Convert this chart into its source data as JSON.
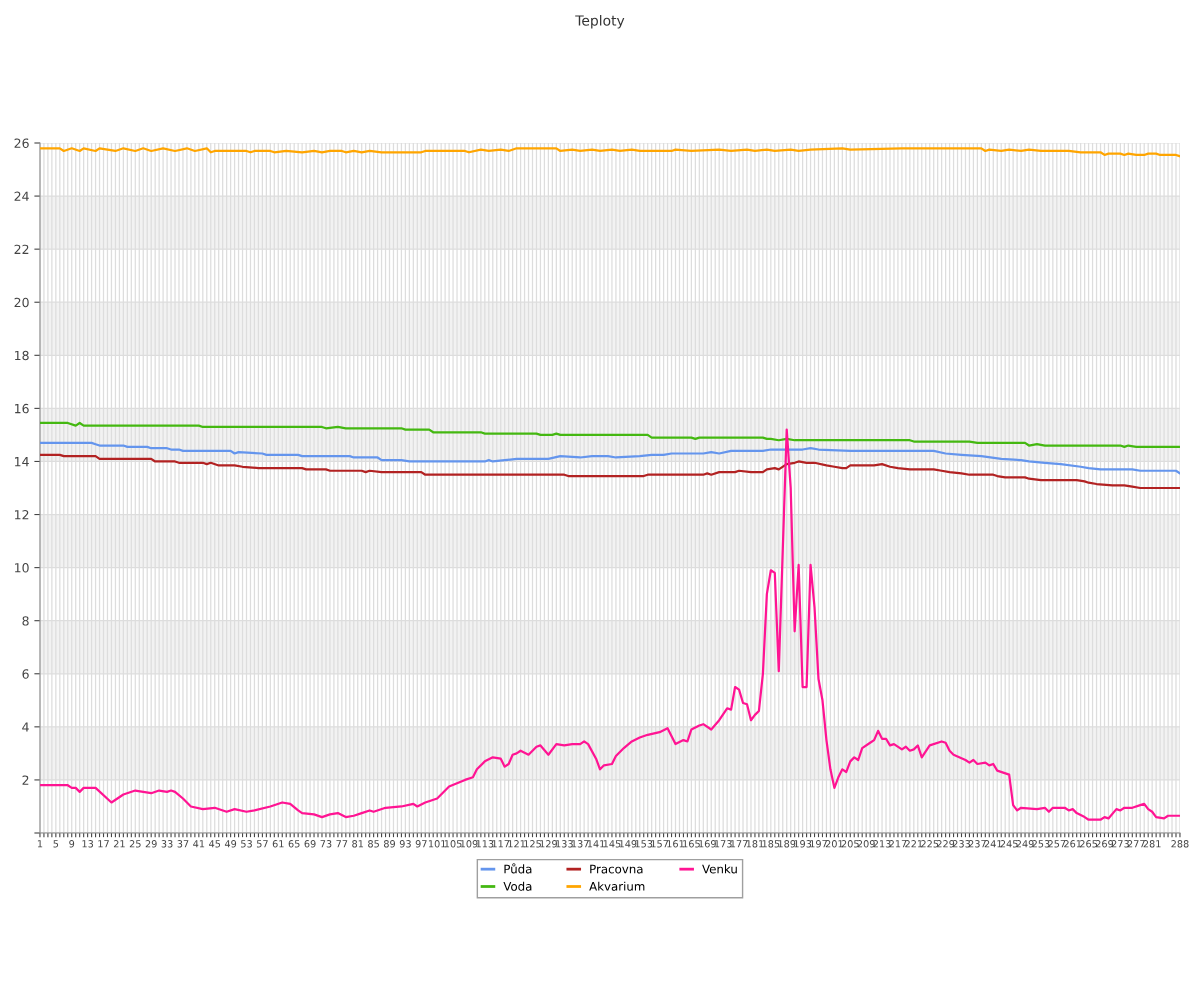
{
  "chart_data": {
    "type": "line",
    "title": "Teploty",
    "xlim": [
      1,
      288
    ],
    "xticks": [
      1,
      {
        "value": 2,
        "label": null
      },
      {
        "value": 3,
        "label": null
      },
      {
        "value": 4,
        "label": null
      },
      5,
      {
        "value": 6,
        "label": null
      },
      {
        "value": 7,
        "label": null
      },
      {
        "value": 8,
        "label": null
      },
      9,
      {
        "value": 10,
        "label": null
      },
      {
        "value": 11,
        "label": null
      },
      {
        "value": 12,
        "label": null
      },
      13,
      {
        "value": 14,
        "label": null
      },
      {
        "value": 15,
        "label": null
      },
      {
        "value": 16,
        "label": null
      },
      17,
      {
        "value": 18,
        "label": null
      },
      {
        "value": 19,
        "label": null
      },
      {
        "value": 20,
        "label": null
      },
      21,
      {
        "value": 22,
        "label": null
      },
      {
        "value": 23,
        "label": null
      },
      {
        "value": 24,
        "label": null
      },
      25,
      {
        "value": 26,
        "label": null
      },
      {
        "value": 27,
        "label": null
      },
      {
        "value": 28,
        "label": null
      },
      29,
      {
        "value": 30,
        "label": null
      },
      {
        "value": 31,
        "label": null
      },
      {
        "value": 32,
        "label": null
      },
      33,
      {
        "value": 34,
        "label": null
      },
      {
        "value": 35,
        "label": null
      },
      {
        "value": 36,
        "label": null
      },
      37,
      {
        "value": 38,
        "label": null
      },
      {
        "value": 39,
        "label": null
      },
      {
        "value": 40,
        "label": null
      },
      41,
      {
        "value": 42,
        "label": null
      },
      {
        "value": 43,
        "label": null
      },
      {
        "value": 44,
        "label": null
      },
      45,
      {
        "value": 46,
        "label": null
      },
      {
        "value": 47,
        "label": null
      },
      {
        "value": 48,
        "label": null
      },
      49,
      {
        "value": 50,
        "label": null
      },
      {
        "value": 51,
        "label": null
      },
      {
        "value": 52,
        "label": null
      },
      53,
      {
        "value": 54,
        "label": null
      },
      {
        "value": 55,
        "label": null
      },
      {
        "value": 56,
        "label": null
      },
      57,
      {
        "value": 58,
        "label": null
      },
      {
        "value": 59,
        "label": null
      },
      {
        "value": 60,
        "label": null
      },
      61,
      {
        "value": 62,
        "label": null
      },
      {
        "value": 63,
        "label": null
      },
      {
        "value": 64,
        "label": null
      },
      65,
      {
        "value": 66,
        "label": null
      },
      {
        "value": 67,
        "label": null
      },
      {
        "value": 68,
        "label": null
      },
      69,
      {
        "value": 70,
        "label": null
      },
      {
        "value": 71,
        "label": null
      },
      {
        "value": 72,
        "label": null
      },
      73,
      {
        "value": 74,
        "label": null
      },
      {
        "value": 75,
        "label": null
      },
      {
        "value": 76,
        "label": null
      },
      77,
      {
        "value": 78,
        "label": null
      },
      {
        "value": 79,
        "label": null
      },
      {
        "value": 80,
        "label": null
      },
      81,
      {
        "value": 82,
        "label": null
      },
      {
        "value": 83,
        "label": null
      },
      {
        "value": 84,
        "label": null
      },
      85,
      {
        "value": 86,
        "label": null
      },
      {
        "value": 87,
        "label": null
      },
      {
        "value": 88,
        "label": null
      },
      89,
      {
        "value": 90,
        "label": null
      },
      {
        "value": 91,
        "label": null
      },
      {
        "value": 92,
        "label": null
      },
      93,
      {
        "value": 94,
        "label": null
      },
      {
        "value": 95,
        "label": null
      },
      {
        "value": 96,
        "label": null
      },
      97,
      {
        "value": 98,
        "label": null
      },
      {
        "value": 99,
        "label": null
      },
      {
        "value": 100,
        "label": null
      },
      101,
      {
        "value": 102,
        "label": null
      },
      {
        "value": 103,
        "label": null
      },
      {
        "value": 104,
        "label": null
      },
      105,
      {
        "value": 106,
        "label": null
      },
      {
        "value": 107,
        "label": null
      },
      {
        "value": 108,
        "label": null
      },
      109,
      {
        "value": 110,
        "label": null
      },
      {
        "value": 111,
        "label": null
      },
      {
        "value": 112,
        "label": null
      },
      113,
      {
        "value": 114,
        "label": null
      },
      {
        "value": 115,
        "label": null
      },
      {
        "value": 116,
        "label": null
      },
      117,
      {
        "value": 118,
        "label": null
      },
      {
        "value": 119,
        "label": null
      },
      {
        "value": 120,
        "label": null
      },
      121,
      {
        "value": 122,
        "label": null
      },
      {
        "value": 123,
        "label": null
      },
      {
        "value": 124,
        "label": null
      },
      125,
      {
        "value": 126,
        "label": null
      },
      {
        "value": 127,
        "label": null
      },
      {
        "value": 128,
        "label": null
      },
      129,
      {
        "value": 130,
        "label": null
      },
      {
        "value": 131,
        "label": null
      },
      {
        "value": 132,
        "label": null
      },
      133,
      {
        "value": 134,
        "label": null
      },
      {
        "value": 135,
        "label": null
      },
      {
        "value": 136,
        "label": null
      },
      137,
      {
        "value": 138,
        "label": null
      },
      {
        "value": 139,
        "label": null
      },
      {
        "value": 140,
        "label": null
      },
      141,
      {
        "value": 142,
        "label": null
      },
      {
        "value": 143,
        "label": null
      },
      {
        "value": 144,
        "label": null
      },
      145,
      {
        "value": 146,
        "label": null
      },
      {
        "value": 147,
        "label": null
      },
      {
        "value": 148,
        "label": null
      },
      149,
      {
        "value": 150,
        "label": null
      },
      {
        "value": 151,
        "label": null
      },
      {
        "value": 152,
        "label": null
      },
      153,
      {
        "value": 154,
        "label": null
      },
      {
        "value": 155,
        "label": null
      },
      {
        "value": 156,
        "label": null
      },
      157,
      {
        "value": 158,
        "label": null
      },
      {
        "value": 159,
        "label": null
      },
      {
        "value": 160,
        "label": null
      },
      161,
      {
        "value": 162,
        "label": null
      },
      {
        "value": 163,
        "label": null
      },
      {
        "value": 164,
        "label": null
      },
      165,
      {
        "value": 166,
        "label": null
      },
      {
        "value": 167,
        "label": null
      },
      {
        "value": 168,
        "label": null
      },
      169,
      {
        "value": 170,
        "label": null
      },
      {
        "value": 171,
        "label": null
      },
      {
        "value": 172,
        "label": null
      },
      173,
      {
        "value": 174,
        "label": null
      },
      {
        "value": 175,
        "label": null
      },
      {
        "value": 176,
        "label": null
      },
      177,
      {
        "value": 178,
        "label": null
      },
      {
        "value": 179,
        "label": null
      },
      {
        "value": 180,
        "label": null
      },
      181,
      {
        "value": 182,
        "label": null
      },
      {
        "value": 183,
        "label": null
      },
      {
        "value": 184,
        "label": null
      },
      185,
      {
        "value": 186,
        "label": null
      },
      {
        "value": 187,
        "label": null
      },
      {
        "value": 188,
        "label": null
      },
      189,
      {
        "value": 190,
        "label": null
      },
      {
        "value": 191,
        "label": null
      },
      {
        "value": 192,
        "label": null
      },
      193,
      {
        "value": 194,
        "label": null
      },
      {
        "value": 195,
        "label": null
      },
      {
        "value": 196,
        "label": null
      },
      197,
      {
        "value": 198,
        "label": null
      },
      {
        "value": 199,
        "label": null
      },
      {
        "value": 200,
        "label": null
      },
      201,
      {
        "value": 202,
        "label": null
      },
      {
        "value": 203,
        "label": null
      },
      {
        "value": 204,
        "label": null
      },
      205,
      {
        "value": 206,
        "label": null
      },
      {
        "value": 207,
        "label": null
      },
      {
        "value": 208,
        "label": null
      },
      209,
      {
        "value": 210,
        "label": null
      },
      {
        "value": 211,
        "label": null
      },
      {
        "value": 212,
        "label": null
      },
      213,
      {
        "value": 214,
        "label": null
      },
      {
        "value": 215,
        "label": null
      },
      {
        "value": 216,
        "label": null
      },
      217,
      {
        "value": 218,
        "label": null
      },
      {
        "value": 219,
        "label": null
      },
      {
        "value": 220,
        "label": null
      },
      221,
      {
        "value": 222,
        "label": null
      },
      {
        "value": 223,
        "label": null
      },
      {
        "value": 224,
        "label": null
      },
      225,
      {
        "value": 226,
        "label": null
      },
      {
        "value": 227,
        "label": null
      },
      {
        "value": 228,
        "label": null
      },
      229,
      {
        "value": 230,
        "label": null
      },
      {
        "value": 231,
        "label": null
      },
      {
        "value": 232,
        "label": null
      },
      233,
      {
        "value": 234,
        "label": null
      },
      {
        "value": 235,
        "label": null
      },
      {
        "value": 236,
        "label": null
      },
      237,
      {
        "value": 238,
        "label": null
      },
      {
        "value": 239,
        "label": null
      },
      {
        "value": 240,
        "label": null
      },
      241,
      {
        "value": 242,
        "label": null
      },
      {
        "value": 243,
        "label": null
      },
      {
        "value": 244,
        "label": null
      },
      245,
      {
        "value": 246,
        "label": null
      },
      {
        "value": 247,
        "label": null
      },
      {
        "value": 248,
        "label": null
      },
      249,
      {
        "value": 250,
        "label": null
      },
      {
        "value": 251,
        "label": null
      },
      {
        "value": 252,
        "label": null
      },
      253,
      {
        "value": 254,
        "label": null
      },
      {
        "value": 255,
        "label": null
      },
      {
        "value": 256,
        "label": null
      },
      257,
      {
        "value": 258,
        "label": null
      },
      {
        "value": 259,
        "label": null
      },
      {
        "value": 260,
        "label": null
      },
      261,
      {
        "value": 262,
        "label": null
      },
      {
        "value": 263,
        "label": null
      },
      {
        "value": 264,
        "label": null
      },
      265,
      {
        "value": 266,
        "label": null
      },
      {
        "value": 267,
        "label": null
      },
      {
        "value": 268,
        "label": null
      },
      269,
      {
        "value": 270,
        "label": null
      },
      {
        "value": 271,
        "label": null
      },
      {
        "value": 272,
        "label": null
      },
      273,
      {
        "value": 274,
        "label": null
      },
      {
        "value": 275,
        "label": null
      },
      {
        "value": 276,
        "label": null
      },
      277,
      {
        "value": 278,
        "label": null
      },
      {
        "value": 279,
        "label": null
      },
      {
        "value": 280,
        "label": null
      },
      281,
      {
        "value": 282,
        "label": null
      },
      {
        "value": 283,
        "label": null
      },
      {
        "value": 284,
        "label": null
      },
      {
        "value": 285,
        "label": null
      },
      {
        "value": 286,
        "label": null
      },
      {
        "value": 287,
        "label": null
      },
      288
    ],
    "ylim": [
      0,
      26
    ],
    "yticks": [
      {
        "value": 0,
        "label": null
      },
      2,
      4,
      6,
      8,
      10,
      12,
      14,
      16,
      18,
      20,
      22,
      24,
      26
    ],
    "grid": true,
    "legend": "bottom",
    "marker": "none",
    "line_style": "solid",
    "bands": [
      {
        "axis": "y",
        "from": 2,
        "to": 4,
        "color": "#f2f2f2"
      },
      {
        "axis": "y",
        "from": 6,
        "to": 8,
        "color": "#f2f2f2"
      },
      {
        "axis": "y",
        "from": 10,
        "to": 12,
        "color": "#f2f2f2"
      },
      {
        "axis": "y",
        "from": 14,
        "to": 16,
        "color": "#f2f2f2"
      },
      {
        "axis": "y",
        "from": 18,
        "to": 20,
        "color": "#f2f2f2"
      },
      {
        "axis": "y",
        "from": 22,
        "to": 24,
        "color": "#f2f2f2"
      }
    ],
    "series": [
      {
        "name": "Půda",
        "color": "#6495ed",
        "x": [
          1,
          14,
          15,
          16,
          22,
          23,
          28,
          29,
          33,
          34,
          36,
          37,
          49,
          50,
          51,
          57,
          58,
          66,
          67,
          79,
          80,
          86,
          87,
          92,
          94,
          113,
          114,
          115,
          118,
          121,
          129,
          132,
          137,
          140,
          144,
          146,
          152,
          155,
          158,
          160,
          168,
          170,
          172,
          175,
          183,
          185,
          193,
          195,
          197,
          205,
          217,
          226,
          229,
          233,
          238,
          243,
          248,
          250,
          254,
          258,
          263,
          265,
          268,
          276,
          278,
          287,
          288
        ],
        "values": [
          14.7,
          14.7,
          14.65,
          14.6,
          14.6,
          14.55,
          14.55,
          14.5,
          14.5,
          14.45,
          14.45,
          14.4,
          14.4,
          14.3,
          14.35,
          14.3,
          14.25,
          14.25,
          14.2,
          14.2,
          14.15,
          14.15,
          14.05,
          14.05,
          14.0,
          14.0,
          14.05,
          14.0,
          14.05,
          14.1,
          14.1,
          14.2,
          14.15,
          14.2,
          14.2,
          14.15,
          14.2,
          14.25,
          14.25,
          14.3,
          14.3,
          14.35,
          14.3,
          14.4,
          14.4,
          14.45,
          14.45,
          14.5,
          14.45,
          14.4,
          14.4,
          14.4,
          14.3,
          14.25,
          14.2,
          14.1,
          14.05,
          14.0,
          13.95,
          13.9,
          13.8,
          13.75,
          13.7,
          13.7,
          13.65,
          13.65,
          13.55
        ]
      },
      {
        "name": "Voda",
        "color": "#44b811",
        "x": [
          1,
          8,
          10,
          11,
          12,
          41,
          42,
          72,
          73,
          76,
          78,
          92,
          93,
          99,
          100,
          112,
          113,
          126,
          127,
          130,
          131,
          132,
          154,
          155,
          165,
          166,
          167,
          183,
          184,
          185,
          187,
          189,
          191,
          220,
          221,
          235,
          237,
          249,
          250,
          252,
          254,
          273,
          274,
          275,
          277,
          288
        ],
        "values": [
          15.45,
          15.45,
          15.35,
          15.45,
          15.35,
          15.35,
          15.3,
          15.3,
          15.25,
          15.3,
          15.25,
          15.25,
          15.2,
          15.2,
          15.1,
          15.1,
          15.05,
          15.05,
          15.0,
          15.0,
          15.05,
          15.0,
          15.0,
          14.9,
          14.9,
          14.85,
          14.9,
          14.9,
          14.85,
          14.85,
          14.8,
          14.85,
          14.8,
          14.8,
          14.75,
          14.75,
          14.7,
          14.7,
          14.6,
          14.65,
          14.6,
          14.6,
          14.55,
          14.6,
          14.55,
          14.55
        ]
      },
      {
        "name": "Pracovna",
        "color": "#b22222",
        "x": [
          1,
          6,
          7,
          15,
          16,
          29,
          30,
          35,
          36,
          42,
          43,
          44,
          46,
          50,
          52,
          56,
          67,
          68,
          73,
          74,
          82,
          83,
          84,
          87,
          97,
          98,
          133,
          134,
          153,
          154,
          168,
          169,
          170,
          172,
          176,
          177,
          180,
          183,
          184,
          186,
          187,
          189,
          191,
          192,
          194,
          196,
          199,
          201,
          203,
          204,
          205,
          211,
          213,
          215,
          217,
          220,
          226,
          228,
          230,
          233,
          235,
          241,
          242,
          244,
          249,
          250,
          253,
          262,
          264,
          265,
          267,
          271,
          274,
          276,
          278,
          288
        ],
        "values": [
          14.25,
          14.25,
          14.2,
          14.2,
          14.1,
          14.1,
          14.0,
          14.0,
          13.95,
          13.95,
          13.9,
          13.95,
          13.85,
          13.85,
          13.8,
          13.75,
          13.75,
          13.7,
          13.7,
          13.65,
          13.65,
          13.6,
          13.65,
          13.6,
          13.6,
          13.5,
          13.5,
          13.45,
          13.45,
          13.5,
          13.5,
          13.55,
          13.5,
          13.6,
          13.6,
          13.65,
          13.6,
          13.6,
          13.7,
          13.75,
          13.7,
          13.9,
          13.95,
          14.0,
          13.95,
          13.95,
          13.85,
          13.8,
          13.75,
          13.75,
          13.85,
          13.85,
          13.9,
          13.8,
          13.75,
          13.7,
          13.7,
          13.65,
          13.6,
          13.55,
          13.5,
          13.5,
          13.45,
          13.4,
          13.4,
          13.35,
          13.3,
          13.3,
          13.25,
          13.2,
          13.15,
          13.1,
          13.1,
          13.05,
          13.0,
          13.0
        ]
      },
      {
        "name": "Akvarium",
        "color": "#ffa500",
        "x": [
          1,
          6,
          7,
          9,
          11,
          12,
          15,
          16,
          20,
          22,
          25,
          27,
          29,
          32,
          35,
          38,
          40,
          43,
          44,
          45,
          53,
          54,
          55,
          59,
          60,
          63,
          67,
          70,
          72,
          74,
          77,
          78,
          80,
          82,
          84,
          87,
          97,
          98,
          108,
          109,
          112,
          114,
          117,
          119,
          121,
          131,
          132,
          135,
          137,
          140,
          142,
          145,
          147,
          150,
          152,
          160,
          161,
          165,
          172,
          175,
          179,
          181,
          184,
          186,
          190,
          192,
          195,
          203,
          205,
          218,
          225,
          238,
          239,
          240,
          243,
          245,
          248,
          250,
          253,
          260,
          263,
          268,
          269,
          270,
          273,
          274,
          275,
          277,
          279,
          280,
          282,
          283,
          287,
          288
        ],
        "values": [
          25.8,
          25.8,
          25.7,
          25.8,
          25.7,
          25.8,
          25.7,
          25.8,
          25.7,
          25.8,
          25.7,
          25.8,
          25.7,
          25.8,
          25.7,
          25.8,
          25.7,
          25.8,
          25.65,
          25.7,
          25.7,
          25.65,
          25.7,
          25.7,
          25.65,
          25.7,
          25.65,
          25.7,
          25.65,
          25.7,
          25.7,
          25.65,
          25.7,
          25.65,
          25.7,
          25.65,
          25.65,
          25.7,
          25.7,
          25.65,
          25.75,
          25.7,
          25.75,
          25.7,
          25.8,
          25.8,
          25.7,
          25.75,
          25.7,
          25.75,
          25.7,
          25.75,
          25.7,
          25.75,
          25.7,
          25.7,
          25.75,
          25.7,
          25.75,
          25.7,
          25.75,
          25.7,
          25.75,
          25.7,
          25.75,
          25.7,
          25.75,
          25.8,
          25.75,
          25.8,
          25.8,
          25.8,
          25.7,
          25.75,
          25.7,
          25.75,
          25.7,
          25.75,
          25.7,
          25.7,
          25.65,
          25.65,
          25.55,
          25.6,
          25.6,
          25.55,
          25.6,
          25.55,
          25.55,
          25.6,
          25.6,
          25.55,
          25.55,
          25.5
        ]
      },
      {
        "name": "Venku",
        "color": "#ff1493",
        "x": [
          1,
          8,
          9,
          10,
          11,
          12,
          15,
          19,
          22,
          25,
          29,
          31,
          33,
          34,
          35,
          37,
          39,
          42,
          45,
          48,
          50,
          53,
          55,
          59,
          62,
          64,
          66,
          67,
          70,
          72,
          74,
          76,
          78,
          80,
          82,
          84,
          85,
          88,
          92,
          95,
          96,
          98,
          101,
          104,
          108,
          110,
          111,
          113,
          115,
          117,
          118,
          119,
          120,
          121,
          122,
          124,
          126,
          127,
          129,
          131,
          133,
          135,
          137,
          138,
          139,
          141,
          142,
          143,
          145,
          146,
          148,
          150,
          152,
          154,
          157,
          159,
          161,
          163,
          164,
          165,
          167,
          168,
          170,
          172,
          174,
          175,
          176,
          177,
          178,
          179,
          180,
          181,
          182,
          183,
          184,
          185,
          186,
          187,
          189,
          190,
          191,
          192,
          193,
          194,
          195,
          196,
          197,
          198,
          199,
          200,
          201,
          202,
          203,
          204,
          205,
          206,
          207,
          208,
          210,
          211,
          212,
          213,
          214,
          215,
          216,
          218,
          219,
          220,
          221,
          222,
          223,
          225,
          228,
          229,
          230,
          231,
          234,
          235,
          236,
          237,
          239,
          240,
          241,
          242,
          245,
          246,
          247,
          248,
          252,
          254,
          255,
          256,
          259,
          260,
          261,
          262,
          264,
          265,
          268,
          269,
          270,
          272,
          273,
          274,
          276,
          278,
          279,
          280,
          281,
          282,
          284,
          285,
          288
        ],
        "values": [
          1.8,
          1.8,
          1.7,
          1.7,
          1.55,
          1.7,
          1.7,
          1.15,
          1.45,
          1.6,
          1.5,
          1.6,
          1.55,
          1.6,
          1.55,
          1.3,
          1.0,
          0.9,
          0.95,
          0.8,
          0.9,
          0.8,
          0.85,
          1.0,
          1.15,
          1.1,
          0.85,
          0.75,
          0.7,
          0.6,
          0.7,
          0.75,
          0.6,
          0.65,
          0.75,
          0.85,
          0.8,
          0.95,
          1.0,
          1.1,
          1.0,
          1.15,
          1.3,
          1.75,
          2.0,
          2.1,
          2.4,
          2.7,
          2.85,
          2.8,
          2.5,
          2.6,
          2.95,
          3.0,
          3.1,
          2.95,
          3.25,
          3.3,
          2.95,
          3.35,
          3.3,
          3.35,
          3.35,
          3.45,
          3.35,
          2.8,
          2.4,
          2.55,
          2.6,
          2.9,
          3.2,
          3.45,
          3.6,
          3.7,
          3.8,
          3.95,
          3.35,
          3.5,
          3.45,
          3.9,
          4.05,
          4.1,
          3.9,
          4.25,
          4.7,
          4.65,
          5.5,
          5.4,
          4.9,
          4.85,
          4.25,
          4.45,
          4.6,
          6.0,
          9.0,
          9.9,
          9.8,
          6.1,
          15.2,
          13.0,
          7.6,
          10.1,
          5.5,
          5.5,
          10.1,
          8.5,
          5.8,
          5.0,
          3.5,
          2.4,
          1.7,
          2.1,
          2.4,
          2.3,
          2.7,
          2.85,
          2.75,
          3.2,
          3.4,
          3.5,
          3.85,
          3.55,
          3.55,
          3.3,
          3.35,
          3.15,
          3.25,
          3.1,
          3.15,
          3.3,
          2.85,
          3.3,
          3.45,
          3.4,
          3.1,
          2.95,
          2.75,
          2.65,
          2.75,
          2.6,
          2.65,
          2.55,
          2.6,
          2.35,
          2.2,
          1.05,
          0.85,
          0.95,
          0.9,
          0.95,
          0.8,
          0.95,
          0.95,
          0.85,
          0.9,
          0.75,
          0.6,
          0.5,
          0.5,
          0.6,
          0.55,
          0.9,
          0.85,
          0.95,
          0.95,
          1.05,
          1.1,
          0.9,
          0.8,
          0.6,
          0.55,
          0.65,
          0.65
        ]
      }
    ]
  }
}
